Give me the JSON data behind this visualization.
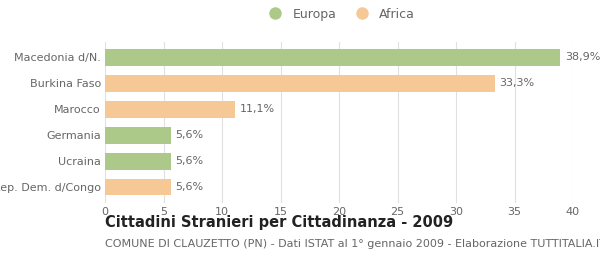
{
  "categories": [
    "Rep. Dem. d/Congo",
    "Ucraina",
    "Germania",
    "Marocco",
    "Burkina Faso",
    "Macedonia d/N."
  ],
  "values": [
    5.6,
    5.6,
    5.6,
    11.1,
    33.3,
    38.9
  ],
  "labels": [
    "5,6%",
    "5,6%",
    "5,6%",
    "11,1%",
    "33,3%",
    "38,9%"
  ],
  "colors": [
    "#f5c896",
    "#adc98a",
    "#adc98a",
    "#f5c896",
    "#f5c896",
    "#adc98a"
  ],
  "legend_labels": [
    "Europa",
    "Africa"
  ],
  "legend_colors": [
    "#adc98a",
    "#f5c896"
  ],
  "title": "Cittadini Stranieri per Cittadinanza - 2009",
  "subtitle": "COMUNE DI CLAUZETTO (PN) - Dati ISTAT al 1° gennaio 2009 - Elaborazione TUTTITALIA.IT",
  "xlim": [
    0,
    40
  ],
  "xticks": [
    0,
    5,
    10,
    15,
    20,
    25,
    30,
    35,
    40
  ],
  "background_color": "#ffffff",
  "bar_height": 0.65,
  "title_fontsize": 10.5,
  "subtitle_fontsize": 8,
  "label_fontsize": 8,
  "tick_fontsize": 8,
  "legend_fontsize": 9,
  "text_color": "#666666",
  "title_color": "#222222",
  "grid_color": "#e0e0e0"
}
